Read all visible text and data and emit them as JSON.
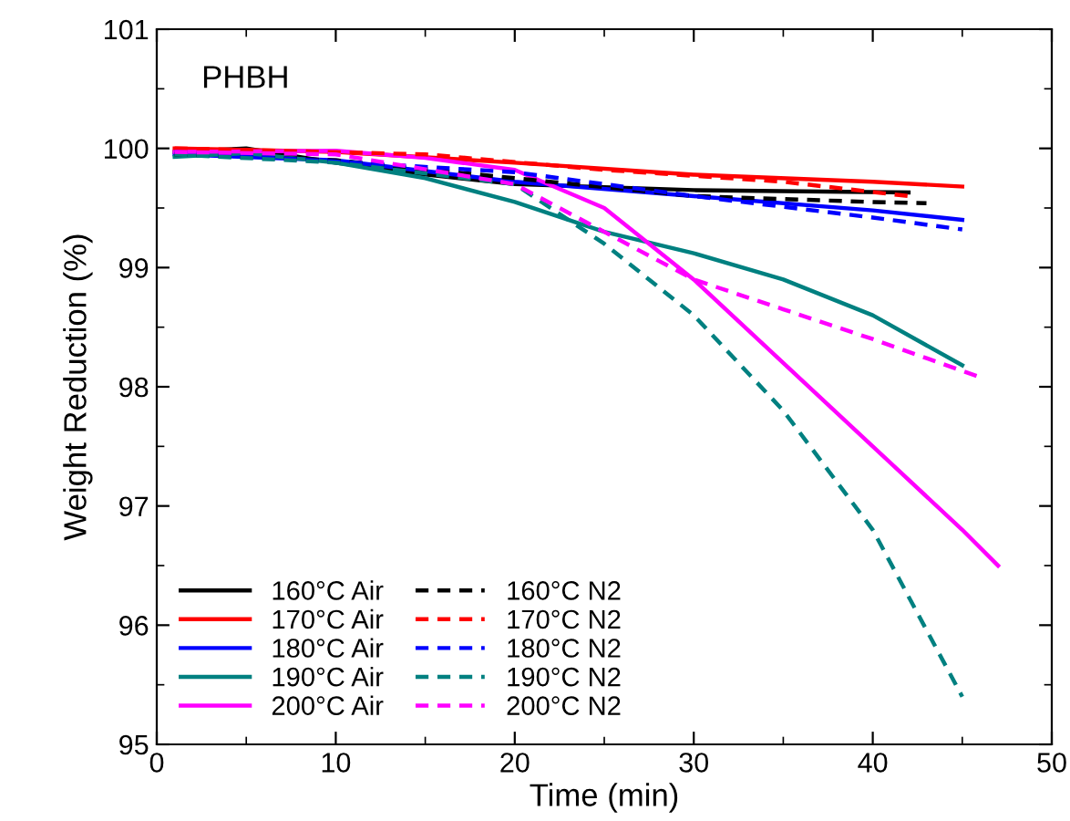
{
  "chart_data": {
    "type": "line",
    "title": "PHBH",
    "xlabel": "Time (min)",
    "ylabel": "Weight Reduction (%)",
    "xlim": [
      0,
      50
    ],
    "xticks": [
      0,
      10,
      20,
      30,
      40,
      50
    ],
    "ylim": [
      95,
      101
    ],
    "yticks": [
      95,
      96,
      97,
      98,
      99,
      100,
      101
    ],
    "grid": false,
    "legend": "bottom left",
    "marker": "none",
    "series": [
      {
        "name": "160°C Air",
        "color": "#000000",
        "line_style": "solid",
        "x": [
          1,
          5,
          10,
          15,
          20,
          30,
          42
        ],
        "values": [
          99.97,
          100,
          99.88,
          99.78,
          99.7,
          99.65,
          99.63
        ]
      },
      {
        "name": "170°C Air",
        "color": "#ff0000",
        "line_style": "solid",
        "x": [
          1,
          10,
          20,
          30,
          40,
          45
        ],
        "values": [
          100,
          99.97,
          99.88,
          99.78,
          99.72,
          99.68
        ]
      },
      {
        "name": "180°C Air",
        "color": "#0000ff",
        "line_style": "solid",
        "x": [
          1,
          10,
          20,
          30,
          40,
          45
        ],
        "values": [
          99.95,
          99.9,
          99.72,
          99.6,
          99.48,
          99.4
        ]
      },
      {
        "name": "190°C Air",
        "color": "#008080",
        "line_style": "solid",
        "x": [
          1,
          5,
          10,
          15,
          20,
          25,
          30,
          35,
          40,
          45
        ],
        "values": [
          99.93,
          99.96,
          99.88,
          99.75,
          99.55,
          99.3,
          99.12,
          98.9,
          98.6,
          98.18
        ]
      },
      {
        "name": "200°C Air",
        "color": "#ff00ff",
        "line_style": "solid",
        "x": [
          1,
          10,
          15,
          20,
          25,
          30,
          35,
          40,
          45,
          47
        ],
        "values": [
          99.97,
          99.98,
          99.92,
          99.82,
          99.5,
          98.9,
          98.2,
          97.5,
          96.8,
          96.5
        ]
      },
      {
        "name": "160°C N2",
        "color": "#000000",
        "line_style": "dashed",
        "x": [
          1,
          10,
          20,
          30,
          40,
          43
        ],
        "values": [
          99.95,
          99.9,
          99.75,
          99.6,
          99.55,
          99.54
        ]
      },
      {
        "name": "170°C N2",
        "color": "#ff0000",
        "line_style": "dashed",
        "x": [
          1,
          15,
          25,
          35,
          42
        ],
        "values": [
          100,
          99.95,
          99.82,
          99.72,
          99.6
        ]
      },
      {
        "name": "180°C N2",
        "color": "#0000ff",
        "line_style": "dashed",
        "x": [
          1,
          20,
          30,
          40,
          45
        ],
        "values": [
          99.97,
          99.8,
          99.6,
          99.42,
          99.32
        ]
      },
      {
        "name": "190°C N2",
        "color": "#008080",
        "line_style": "dashed",
        "x": [
          1,
          10,
          20,
          25,
          30,
          35,
          40,
          45
        ],
        "values": [
          99.95,
          99.88,
          99.7,
          99.2,
          98.6,
          97.8,
          96.8,
          95.4
        ]
      },
      {
        "name": "200°C N2",
        "color": "#ff00ff",
        "line_style": "dashed",
        "x": [
          1,
          10,
          20,
          25,
          30,
          35,
          40,
          46
        ],
        "values": [
          99.97,
          99.95,
          99.7,
          99.3,
          98.9,
          98.65,
          98.4,
          98.08
        ]
      }
    ]
  }
}
